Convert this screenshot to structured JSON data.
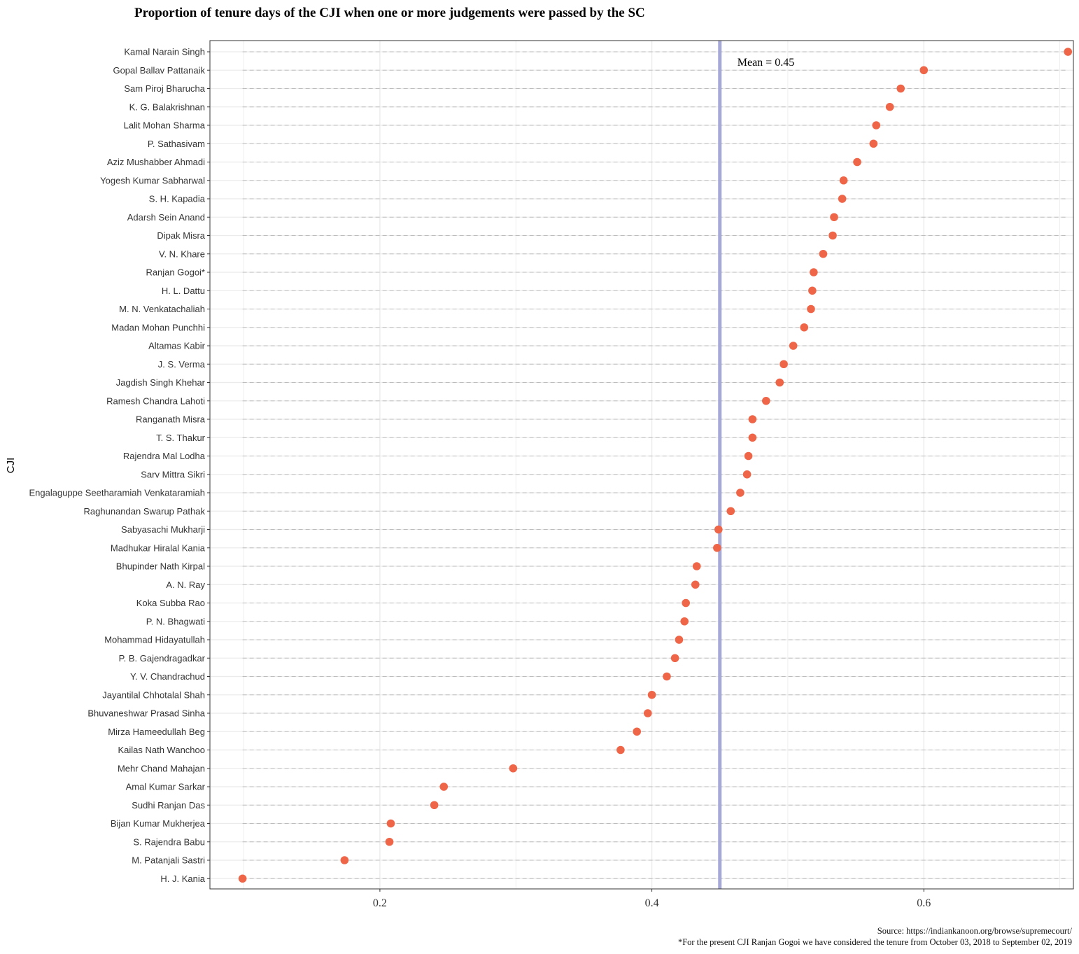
{
  "title": "Proportion of tenure days of the CJI when one or more judgements were passed by the SC",
  "footer": {
    "source": "Source: https://indiankanoon.org/browse/supremecourt/",
    "note": "*For the present CJI Ranjan Gogoi we have considered the tenure from October 03, 2018 to September 02, 2019"
  },
  "colors": {
    "point": "#EF6548",
    "mean_line": "#A6A9D6",
    "grid": "#EBEBEB",
    "dash": "#BDBDBD",
    "panel_border": "#333333"
  },
  "chart_data": {
    "type": "scatter",
    "title": "Proportion of tenure days of the CJI when one or more judgements were passed by the SC",
    "ylabel": "CJI",
    "xlabel": "",
    "xlim": [
      0.075,
      0.71
    ],
    "xticks": [
      0.2,
      0.4,
      0.6
    ],
    "xtick_labels": [
      "0.2",
      "0.4",
      "0.6"
    ],
    "grid": true,
    "mean": 0.45,
    "mean_label": "Mean = 0.45",
    "categories": [
      "Kamal Narain Singh",
      "Gopal Ballav Pattanaik",
      "Sam Piroj Bharucha",
      "K. G. Balakrishnan",
      "Lalit Mohan Sharma",
      "P. Sathasivam",
      "Aziz Mushabber Ahmadi",
      "Yogesh Kumar Sabharwal",
      "S. H. Kapadia",
      "Adarsh Sein Anand",
      "Dipak Misra",
      "V. N. Khare",
      "Ranjan Gogoi*",
      "H. L. Dattu",
      "M. N. Venkatachaliah",
      "Madan Mohan Punchhi",
      "Altamas Kabir",
      "J. S. Verma",
      "Jagdish Singh Khehar",
      "Ramesh Chandra Lahoti",
      "Ranganath Misra",
      "T. S. Thakur",
      "Rajendra Mal Lodha",
      "Sarv Mittra Sikri",
      "Engalaguppe Seetharamiah Venkataramiah",
      "Raghunandan Swarup Pathak",
      "Sabyasachi Mukharji",
      "Madhukar Hiralal Kania",
      "Bhupinder Nath Kirpal",
      "A. N. Ray",
      "Koka Subba Rao",
      "P. N. Bhagwati",
      "Mohammad Hidayatullah",
      "P. B. Gajendragadkar",
      "Y. V. Chandrachud",
      "Jayantilal Chhotalal Shah",
      "Bhuvaneshwar Prasad Sinha",
      "Mirza Hameedullah Beg",
      "Kailas Nath Wanchoo",
      "Mehr Chand Mahajan",
      "Amal Kumar Sarkar",
      "Sudhi Ranjan Das",
      "Bijan Kumar Mukherjea",
      "S. Rajendra Babu",
      "M. Patanjali Sastri",
      "H. J. Kania"
    ],
    "values": [
      0.706,
      0.6,
      0.583,
      0.575,
      0.565,
      0.563,
      0.551,
      0.541,
      0.54,
      0.534,
      0.533,
      0.526,
      0.519,
      0.518,
      0.517,
      0.512,
      0.504,
      0.497,
      0.494,
      0.484,
      0.474,
      0.474,
      0.471,
      0.47,
      0.465,
      0.458,
      0.449,
      0.448,
      0.433,
      0.432,
      0.425,
      0.424,
      0.42,
      0.417,
      0.411,
      0.4,
      0.397,
      0.389,
      0.377,
      0.298,
      0.247,
      0.24,
      0.208,
      0.207,
      0.174,
      0.099
    ]
  }
}
